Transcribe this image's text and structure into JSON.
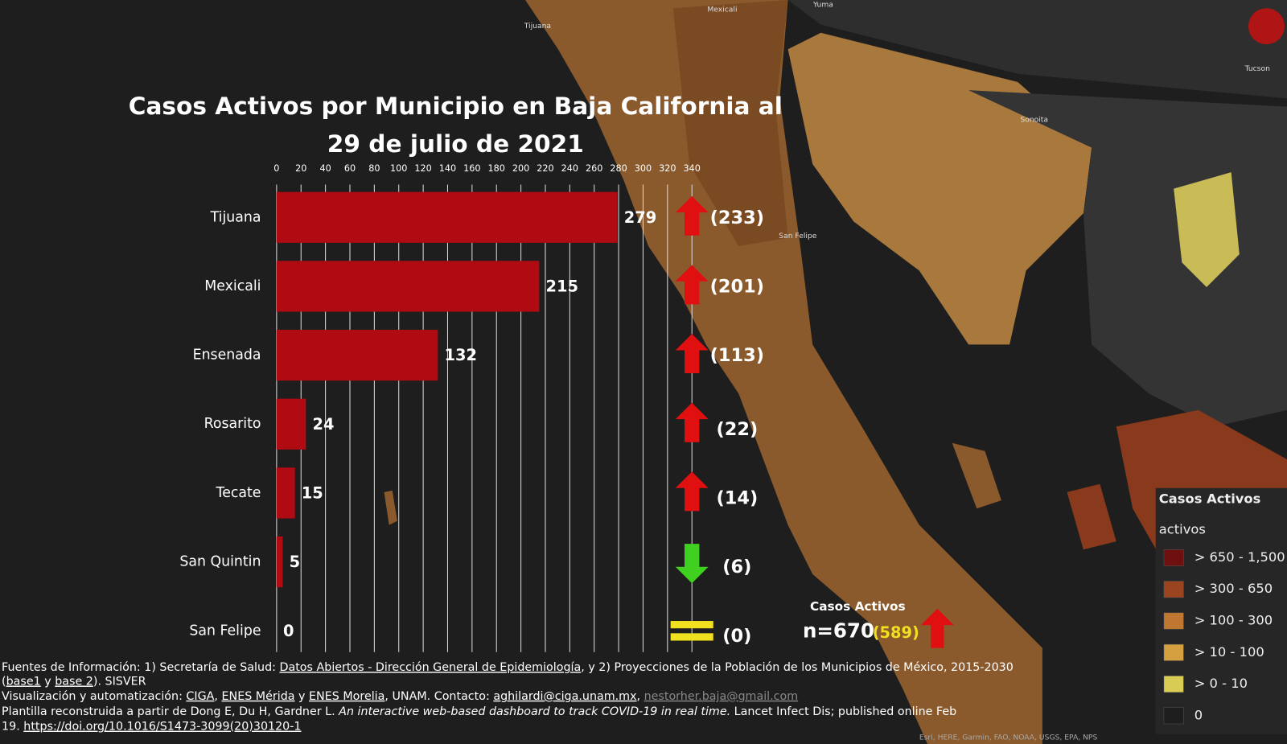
{
  "chart_data": {
    "type": "bar",
    "orientation": "horizontal",
    "title": [
      "Casos Activos por Municipio en Baja California al",
      "29 de julio de 2021"
    ],
    "categories": [
      "Tijuana",
      "Mexicali",
      "Ensenada",
      "Rosarito",
      "Tecate",
      "San Quintin",
      "San Felipe"
    ],
    "values": [
      279,
      215,
      132,
      24,
      15,
      5,
      0
    ],
    "previous_values": [
      233,
      201,
      113,
      22,
      14,
      6,
      0
    ],
    "previous_value_labels": [
      "(233)",
      "(201)",
      "(113)",
      "(22)",
      "(14)",
      "(6)",
      "(0)"
    ],
    "color": "#b00a12",
    "xlim": [
      0,
      340
    ],
    "xticks": [
      0,
      20,
      40,
      60,
      80,
      100,
      120,
      140,
      160,
      180,
      200,
      220,
      240,
      260,
      280,
      300,
      320,
      340
    ],
    "grid": true
  },
  "total": {
    "title": "Casos Activos",
    "label": "n=670",
    "previous_label": "(589)"
  },
  "legend": {
    "title": "Casos Activos",
    "subtitle": "activos",
    "classes": [
      {
        "label": "> 650 - 1,500",
        "color": "#6e1010"
      },
      {
        "label": "> 300 - 650",
        "color": "#9a4420"
      },
      {
        "label": "> 100 - 300",
        "color": "#c07830"
      },
      {
        "label": "> 10 - 100",
        "color": "#d4a040"
      },
      {
        "label": "> 0 - 10",
        "color": "#d8cc55"
      },
      {
        "label": "0",
        "color": "#1e1e1e"
      }
    ]
  },
  "map_labels": [
    "Tijuana",
    "Mexicali",
    "Yuma",
    "Tucson",
    "Sonoita",
    "San Felipe"
  ],
  "footer": [
    [
      "Fuentes de Información: 1) Secretaría de Salud: ",
      "Datos Abiertos - Dirección General de Epidemiología",
      ", y 2) Proyecciones de la Población de los Municipios de México, 2015-2030"
    ],
    [
      "(",
      "base1",
      " y ",
      "base 2",
      "). SISVER"
    ],
    [
      " Visualización y automatización: ",
      "CIGA",
      ", ",
      "ENES Mérida",
      " y ",
      "ENES Morelia",
      ", UNAM. Contacto: ",
      "aghilardi@ciga.unam.mx",
      ", ",
      "nestorher.baja@gmail.com"
    ],
    [
      " Plantilla reconstruida a partir de Dong E, Du H, Gardner L. ",
      "An interactive web-based dashboard to track COVID-19 in real time.",
      " Lancet Infect Dis; published online Feb"
    ],
    [
      "19. ",
      "https://doi.org/10.1016/S1473-3099(20)30120-1"
    ]
  ],
  "attribution": "Esri, HERE, Garmin, FAO, NOAA, USGS, EPA, NPS"
}
